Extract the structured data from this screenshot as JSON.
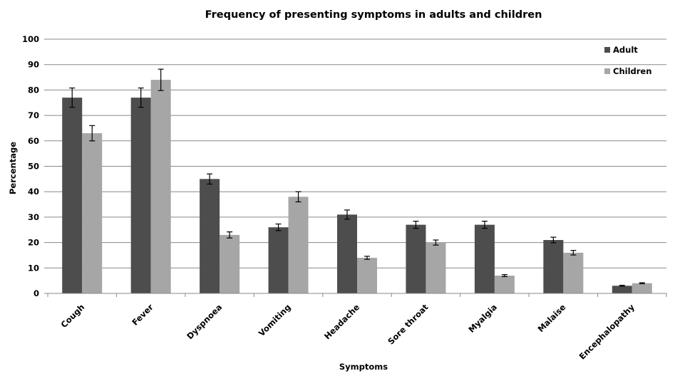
{
  "chart_data": {
    "type": "bar",
    "title": "Frequency of presenting symptoms in adults and children",
    "xlabel": "Symptoms",
    "ylabel": "Percentage",
    "ylim": [
      0,
      100
    ],
    "yticks": [
      0,
      10,
      20,
      30,
      40,
      50,
      60,
      70,
      80,
      90,
      100
    ],
    "grid": true,
    "legend_position": "top-right",
    "categories": [
      "Cough",
      "Fever",
      "Dyspnoea",
      "Vomiting",
      "Headache",
      "Sore throat",
      "Myalgia",
      "Malaise",
      "Encephalopathy"
    ],
    "series": [
      {
        "name": "Adult",
        "color": "#4d4d4d",
        "values": [
          77,
          77,
          45,
          26,
          31,
          27,
          27,
          21,
          3
        ],
        "error": [
          3.8,
          3.8,
          2,
          1.3,
          1.8,
          1.4,
          1.4,
          1.1,
          0.2
        ]
      },
      {
        "name": "Children",
        "color": "#a6a6a6",
        "values": [
          63,
          84,
          23,
          38,
          14,
          20,
          7,
          16,
          4
        ],
        "error": [
          3,
          4.2,
          1.2,
          2,
          0.6,
          1,
          0.4,
          0.9,
          0.2
        ]
      }
    ]
  }
}
